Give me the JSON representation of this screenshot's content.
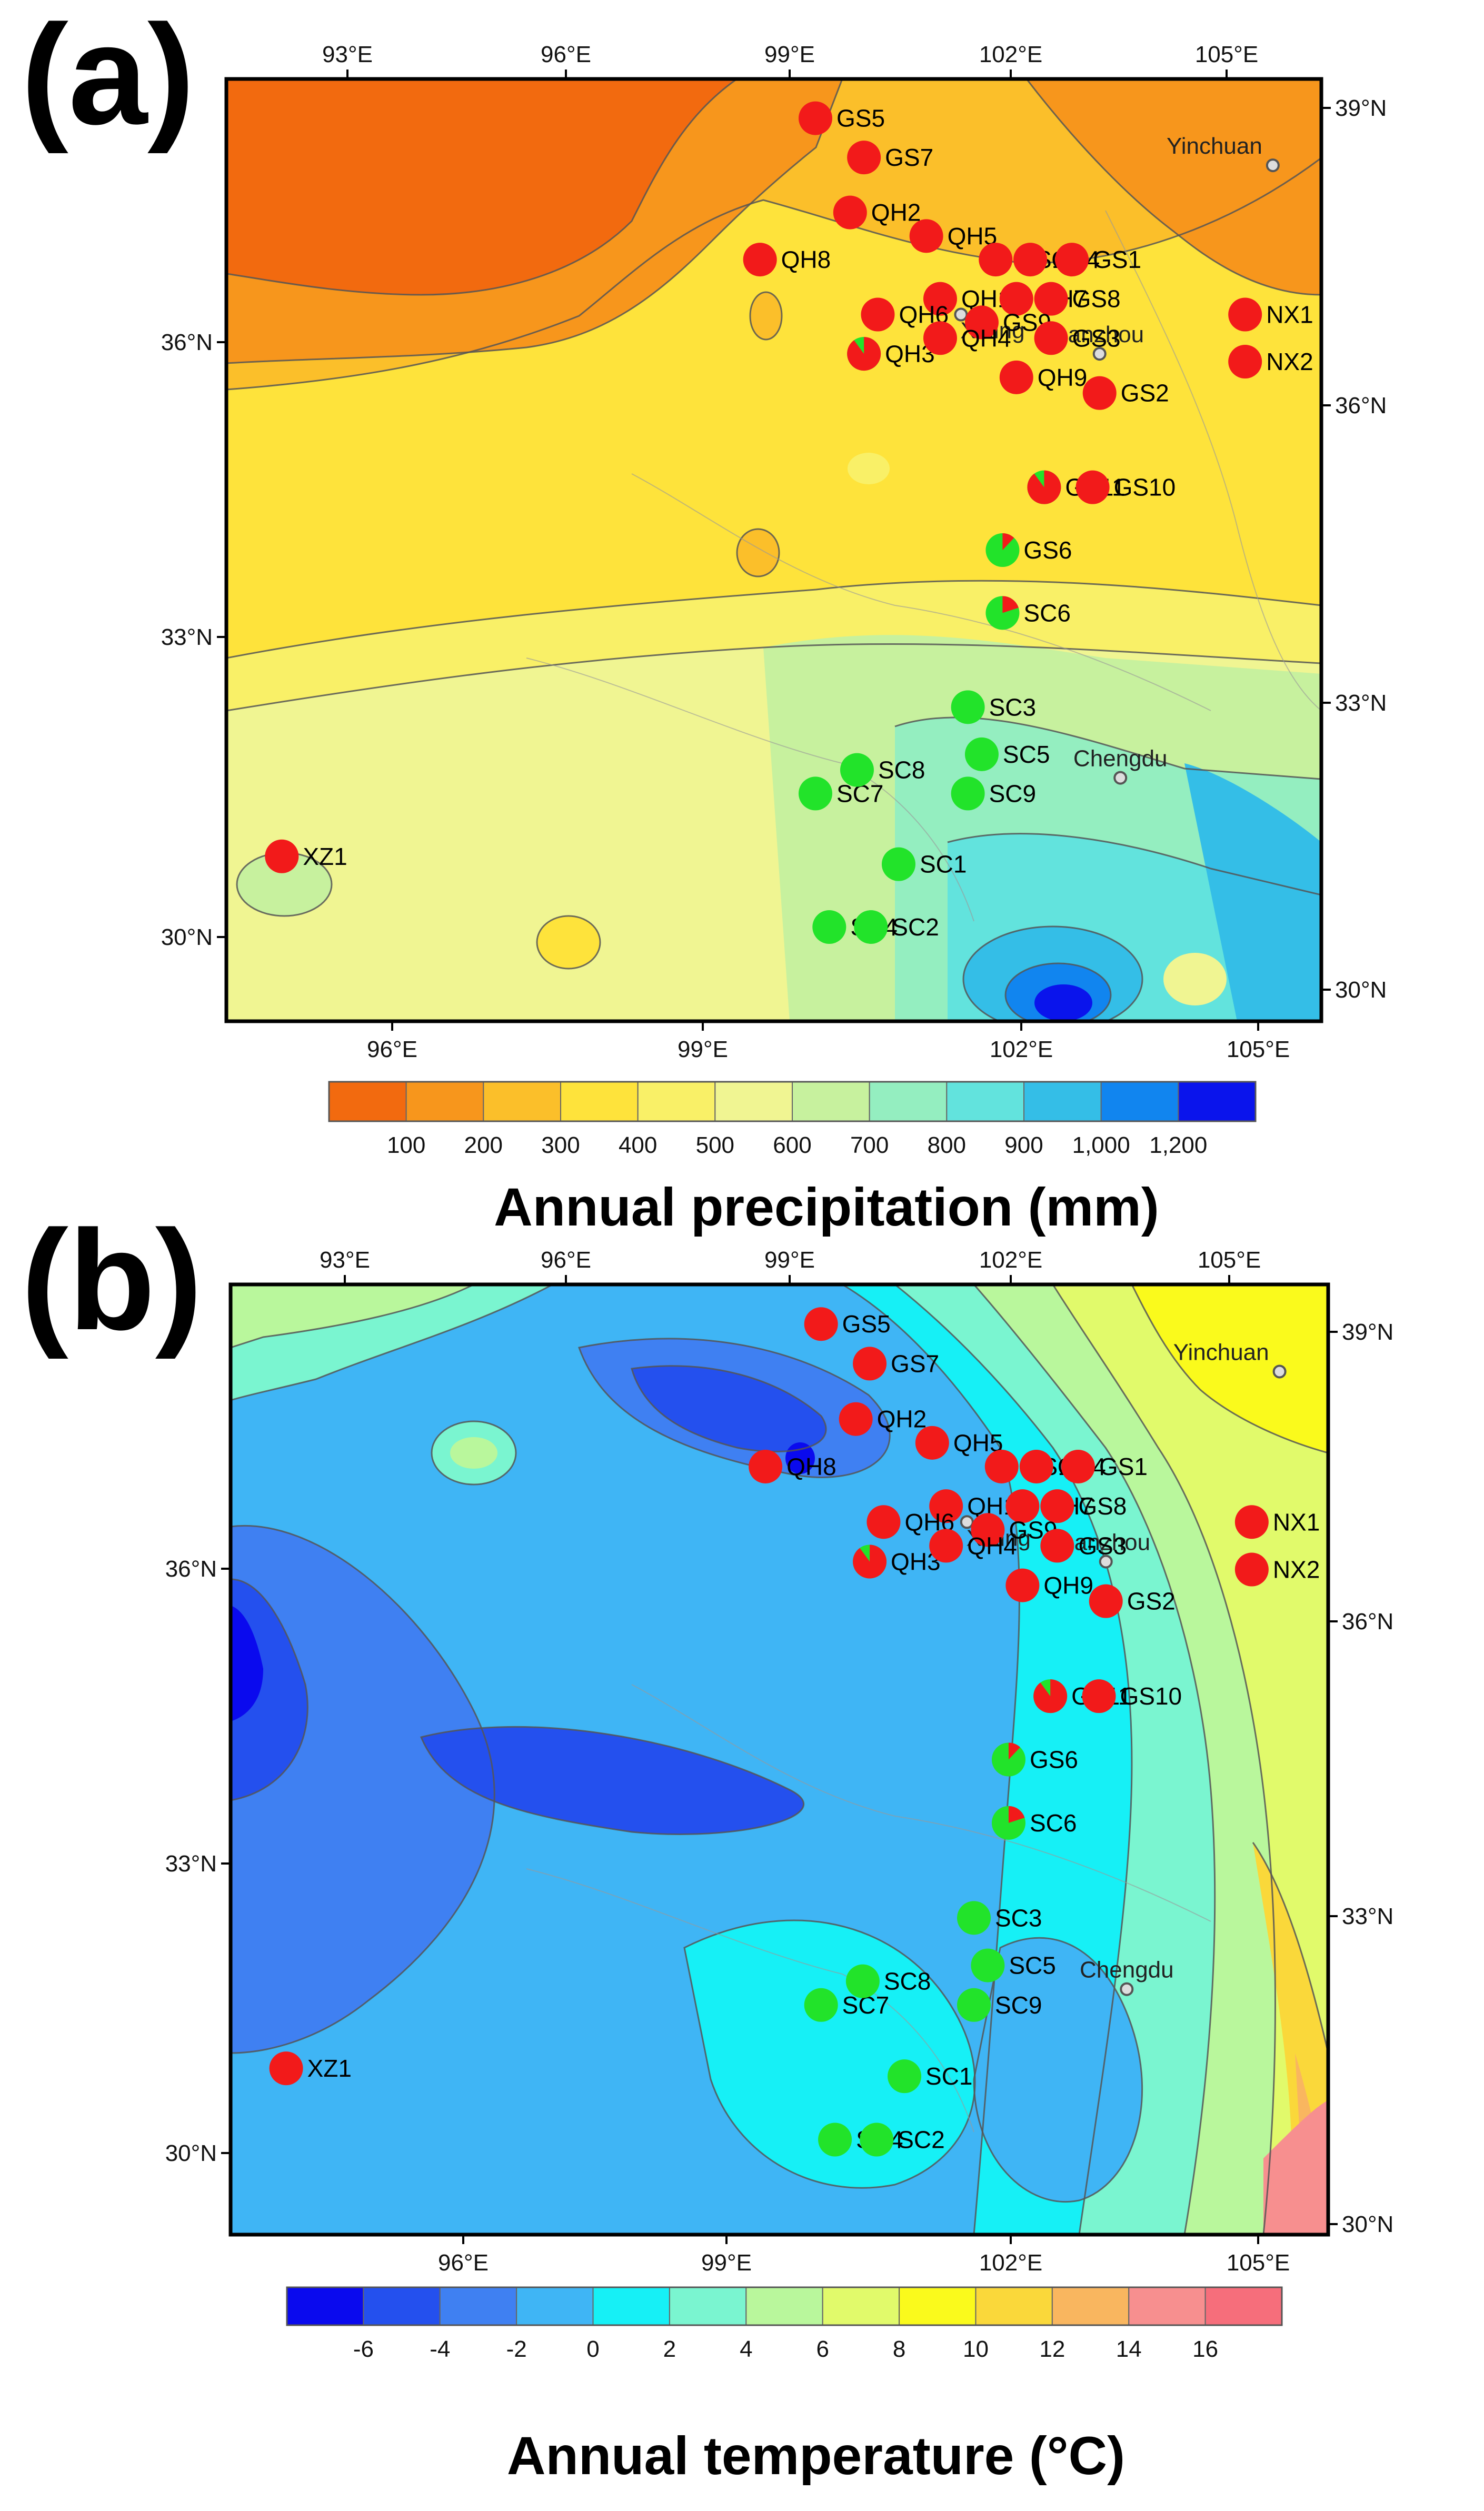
{
  "panels": [
    {
      "id": "a",
      "letter": "(a)",
      "colorbar_title": "Annual precipitation (mm)",
      "colorbar_ticks": [
        "100",
        "200",
        "300",
        "400",
        "500",
        "600",
        "700",
        "800",
        "900",
        "1,000",
        "1,200"
      ],
      "colorbar_colors": [
        "#F26A0F",
        "#F7961C",
        "#FBBF2A",
        "#FEE33B",
        "#F9F067",
        "#F0F592",
        "#C7F19E",
        "#94EEC0",
        "#62E3DD",
        "#34BEE7",
        "#1185EF",
        "#0A14EC"
      ],
      "top_ticks": [
        "93°E",
        "96°E",
        "99°E",
        "102°E",
        "105°E"
      ],
      "bottom_ticks": [
        "96°E",
        "99°E",
        "102°E",
        "105°E"
      ],
      "left_ticks": [
        "36°N",
        "33°N",
        "30°N"
      ],
      "right_ticks": [
        "39°N",
        "36°N",
        "33°N",
        "30°N"
      ]
    },
    {
      "id": "b",
      "letter": "(b)",
      "colorbar_title": "Annual temperature (°C)",
      "colorbar_ticks": [
        "-6",
        "-4",
        "-2",
        "0",
        "2",
        "4",
        "6",
        "8",
        "10",
        "12",
        "14",
        "16"
      ],
      "colorbar_colors": [
        "#0A0AEE",
        "#2450EE",
        "#3F80F2",
        "#3FB5F5",
        "#16F0F6",
        "#7AF5D0",
        "#B9F79C",
        "#E1FA6B",
        "#FAFA1C",
        "#FAD83A",
        "#F9B65F",
        "#F78F8F",
        "#F66E7B"
      ],
      "top_ticks": [
        "93°E",
        "96°E",
        "99°E",
        "102°E",
        "105°E"
      ],
      "bottom_ticks": [
        "96°E",
        "99°E",
        "102°E",
        "105°E"
      ],
      "left_ticks": [
        "36°N",
        "33°N",
        "30°N"
      ],
      "right_ticks": [
        "39°N",
        "36°N",
        "33°N",
        "30°N"
      ]
    }
  ],
  "cities": [
    {
      "name": "Yinchuan",
      "lon": 106.3,
      "lat": 38.5
    },
    {
      "name": "Xining",
      "lon": 101.8,
      "lat": 36.6
    },
    {
      "name": "Lanzhou",
      "lon": 103.8,
      "lat": 36.1
    },
    {
      "name": "Chengdu",
      "lon": 104.1,
      "lat": 30.7
    }
  ],
  "sites": [
    {
      "name": "GS5",
      "lon": 99.7,
      "lat": 39.1,
      "green_fraction": 0
    },
    {
      "name": "GS7",
      "lon": 100.4,
      "lat": 38.6,
      "green_fraction": 0
    },
    {
      "name": "QH5",
      "lon": 101.3,
      "lat": 37.6,
      "green_fraction": 0
    },
    {
      "name": "QH2",
      "lon": 100.2,
      "lat": 37.9,
      "green_fraction": 0
    },
    {
      "name": "QH8",
      "lon": 98.9,
      "lat": 37.3,
      "green_fraction": 0
    },
    {
      "name": "GS12",
      "lon": 102.3,
      "lat": 37.3,
      "green_fraction": 0
    },
    {
      "name": "GS4",
      "lon": 102.8,
      "lat": 37.3,
      "green_fraction": 0
    },
    {
      "name": "GS1",
      "lon": 103.4,
      "lat": 37.3,
      "green_fraction": 0
    },
    {
      "name": "QH1",
      "lon": 101.5,
      "lat": 36.8,
      "green_fraction": 0
    },
    {
      "name": "QH7",
      "lon": 102.6,
      "lat": 36.8,
      "green_fraction": 0
    },
    {
      "name": "GS8",
      "lon": 103.1,
      "lat": 36.8,
      "green_fraction": 0
    },
    {
      "name": "QH6",
      "lon": 100.6,
      "lat": 36.6,
      "green_fraction": 0
    },
    {
      "name": "GS9",
      "lon": 102.1,
      "lat": 36.5,
      "green_fraction": 0
    },
    {
      "name": "GS3",
      "lon": 103.1,
      "lat": 36.3,
      "green_fraction": 0
    },
    {
      "name": "QH3",
      "lon": 100.4,
      "lat": 36.1,
      "green_fraction": 0.1
    },
    {
      "name": "QH4",
      "lon": 101.5,
      "lat": 36.3,
      "green_fraction": 0
    },
    {
      "name": "QH9",
      "lon": 102.6,
      "lat": 35.8,
      "green_fraction": 0
    },
    {
      "name": "GS2",
      "lon": 103.8,
      "lat": 35.6,
      "green_fraction": 0
    },
    {
      "name": "NX1",
      "lon": 105.9,
      "lat": 36.6,
      "green_fraction": 0
    },
    {
      "name": "NX2",
      "lon": 105.9,
      "lat": 36.0,
      "green_fraction": 0
    },
    {
      "name": "GS11",
      "lon": 103.0,
      "lat": 34.4,
      "green_fraction": 0.1
    },
    {
      "name": "GS10",
      "lon": 103.7,
      "lat": 34.4,
      "green_fraction": 0
    },
    {
      "name": "GS6",
      "lon": 102.4,
      "lat": 33.6,
      "green_fraction": 0.88
    },
    {
      "name": "SC6",
      "lon": 102.4,
      "lat": 32.8,
      "green_fraction": 0.8
    },
    {
      "name": "SC3",
      "lon": 101.9,
      "lat": 31.6,
      "green_fraction": 1
    },
    {
      "name": "SC5",
      "lon": 102.1,
      "lat": 31.0,
      "green_fraction": 1
    },
    {
      "name": "SC9",
      "lon": 101.9,
      "lat": 30.5,
      "green_fraction": 1
    },
    {
      "name": "SC7",
      "lon": 99.7,
      "lat": 30.5,
      "green_fraction": 1
    },
    {
      "name": "SC8",
      "lon": 100.3,
      "lat": 30.8,
      "green_fraction": 1
    },
    {
      "name": "SC1",
      "lon": 100.9,
      "lat": 29.6,
      "green_fraction": 1
    },
    {
      "name": "SC4",
      "lon": 99.9,
      "lat": 28.8,
      "green_fraction": 1
    },
    {
      "name": "SC2",
      "lon": 100.5,
      "lat": 28.8,
      "green_fraction": 1
    },
    {
      "name": "XZ1",
      "lon": 92.0,
      "lat": 29.7,
      "green_fraction": 0
    }
  ]
}
